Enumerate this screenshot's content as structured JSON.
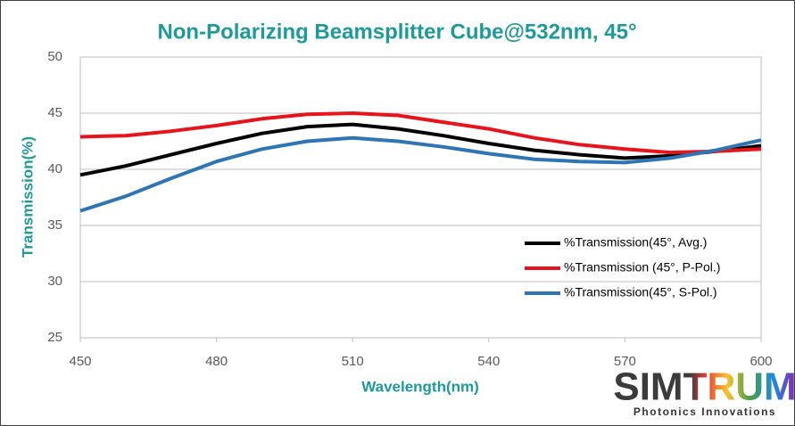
{
  "chart_data": {
    "type": "line",
    "title": "Non-Polarizing Beamsplitter Cube@532nm, 45°",
    "x_label": "Wavelength(nm)",
    "y_label": "Transmission(%)",
    "x": [
      450,
      460,
      470,
      480,
      490,
      500,
      510,
      520,
      530,
      540,
      550,
      560,
      570,
      580,
      590,
      600
    ],
    "series": [
      {
        "name": "%Transmission(45°, Avg.)",
        "color": "#000000",
        "values": [
          39.5,
          40.3,
          41.3,
          42.3,
          43.2,
          43.8,
          44.0,
          43.6,
          43.0,
          42.3,
          41.7,
          41.3,
          41.0,
          41.2,
          41.6,
          42.1
        ]
      },
      {
        "name": "%Transmission (45°, P-Pol.)",
        "color": "#e8141b",
        "values": [
          42.9,
          43.0,
          43.4,
          43.9,
          44.5,
          44.9,
          45.0,
          44.8,
          44.2,
          43.6,
          42.8,
          42.2,
          41.8,
          41.5,
          41.6,
          41.8
        ]
      },
      {
        "name": "%Transmission(45°, S-Pol.)",
        "color": "#2e75b6",
        "values": [
          36.3,
          37.6,
          39.2,
          40.7,
          41.8,
          42.5,
          42.8,
          42.5,
          42.0,
          41.4,
          40.9,
          40.7,
          40.6,
          41.0,
          41.7,
          42.6
        ]
      }
    ],
    "xlim": [
      450,
      600
    ],
    "xticks": [
      450,
      480,
      510,
      540,
      570,
      600
    ],
    "ylim": [
      25,
      50
    ],
    "yticks": [
      25,
      30,
      35,
      40,
      45,
      50
    ],
    "grid": true,
    "legend": "lower right"
  },
  "logo": {
    "name": "SIMTRUM",
    "tagline": "Photonics Innovations"
  }
}
